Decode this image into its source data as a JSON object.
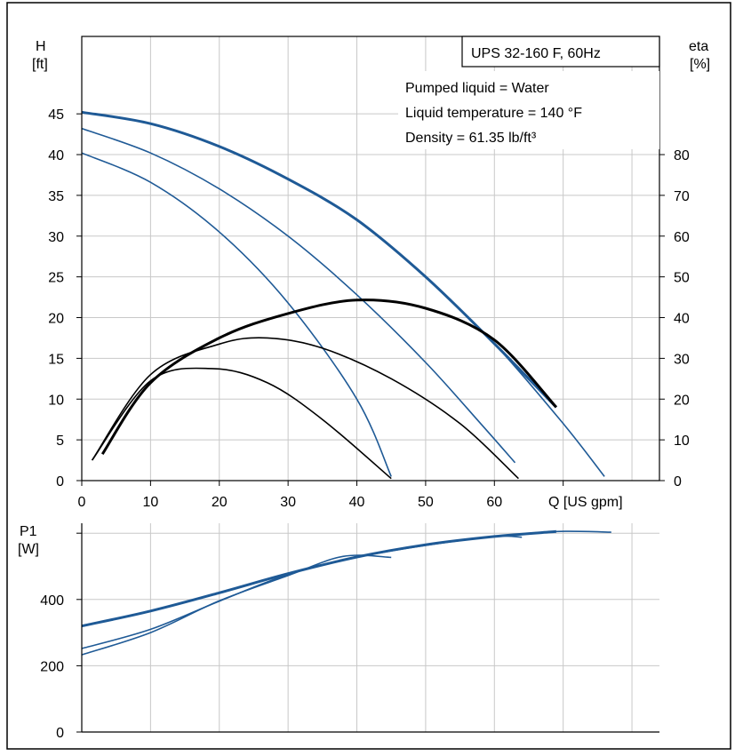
{
  "legend_box": {
    "title": "UPS 32-160 F, 60Hz"
  },
  "conditions": [
    "Pumped liquid = Water",
    "Liquid temperature = 140 °F",
    "Density = 61.35 lb/ft³"
  ],
  "colors": {
    "head_curve": "#1f5a96",
    "eff_curve": "#000000",
    "grid": "#c8c8c8",
    "frame": "#000000"
  },
  "chart_data": [
    {
      "type": "line",
      "title": "",
      "xlabel": "Q [US gpm]",
      "ylabel": "H\n[ft]",
      "ylabel_left_line1": "H",
      "ylabel_left_line2": "[ft]",
      "ylabel_right_line1": "eta",
      "ylabel_right_line2": "[%]",
      "xlim": [
        0,
        84
      ],
      "ylim": [
        0,
        54.5
      ],
      "ylim_right": [
        0,
        109
      ],
      "grid": true,
      "x_ticks": [
        0,
        10,
        20,
        30,
        40,
        50,
        60
      ],
      "x_tick_labels": [
        "0",
        "10",
        "20",
        "30",
        "40",
        "50",
        "60"
      ],
      "x_unit_tick_label": "Q [US gpm]",
      "y_ticks": [
        0,
        5,
        10,
        15,
        20,
        25,
        30,
        35,
        40,
        45
      ],
      "y_tick_labels": [
        "0",
        "5",
        "10",
        "15",
        "20",
        "25",
        "30",
        "35",
        "40",
        "45"
      ],
      "y_ticks_right": [
        0,
        10,
        20,
        30,
        40,
        50,
        60,
        70,
        80
      ],
      "y_tick_labels_right": [
        "0",
        "10",
        "20",
        "30",
        "40",
        "50",
        "60",
        "70",
        "80"
      ],
      "head_series": [
        {
          "x": [
            0,
            10,
            20,
            30,
            40,
            50,
            60,
            69
          ],
          "y": [
            45.2,
            43.8,
            41.0,
            37.0,
            32.0,
            25.0,
            16.8,
            9.0
          ]
        },
        {
          "x": [
            0,
            10,
            20,
            30,
            40,
            50,
            60,
            70,
            76
          ],
          "y": [
            45.2,
            43.8,
            41.0,
            37.0,
            32.0,
            25.0,
            16.8,
            7.0,
            0.5
          ]
        },
        {
          "x": [
            0,
            10,
            20,
            30,
            40,
            50,
            58,
            63
          ],
          "y": [
            43.2,
            40.2,
            35.8,
            30.0,
            22.8,
            14.5,
            7.0,
            2.2
          ]
        },
        {
          "x": [
            0,
            10,
            20,
            30,
            40,
            45
          ],
          "y": [
            40.2,
            36.6,
            30.5,
            21.8,
            10.0,
            0.5
          ]
        }
      ],
      "efficiency_series": [
        {
          "x": [
            3,
            10,
            20,
            30,
            40,
            50,
            60,
            69
          ],
          "y": [
            6.5,
            24.0,
            35.0,
            41.0,
            44.3,
            42.3,
            34.5,
            18.0
          ]
        },
        {
          "x": [
            1.5,
            10,
            20,
            27,
            35,
            45,
            55,
            63.5
          ],
          "y": [
            5.0,
            26.0,
            33.5,
            35.0,
            32.5,
            25.0,
            14.0,
            0.5
          ]
        },
        {
          "x": [
            1.5,
            10,
            19,
            27,
            35,
            45
          ],
          "y": [
            5.0,
            24.5,
            27.5,
            24.0,
            15.0,
            0.5
          ]
        }
      ]
    },
    {
      "type": "line",
      "title": "",
      "xlabel": "",
      "ylabel": "P1\n[W]",
      "ylabel_line1": "P1",
      "ylabel_line2": "[W]",
      "xlim": [
        0,
        84
      ],
      "ylim": [
        0,
        630
      ],
      "grid": true,
      "y_ticks": [
        0,
        200,
        400
      ],
      "y_tick_labels": [
        "0",
        "200",
        "400"
      ],
      "series": [
        {
          "x": [
            0,
            10,
            20,
            30,
            40,
            50,
            60,
            69
          ],
          "y": [
            320,
            365,
            420,
            478,
            528,
            565,
            590,
            605
          ]
        },
        {
          "x": [
            0,
            10,
            20,
            30,
            40,
            50,
            60,
            69,
            77
          ],
          "y": [
            320,
            365,
            420,
            478,
            528,
            565,
            590,
            605,
            603
          ]
        },
        {
          "x": [
            0,
            10,
            20,
            30,
            40,
            50,
            60,
            64
          ],
          "y": [
            252,
            310,
            395,
            475,
            527,
            563,
            590,
            588
          ]
        },
        {
          "x": [
            0,
            10,
            20,
            30,
            38,
            45
          ],
          "y": [
            233,
            300,
            396,
            472,
            530,
            527
          ]
        }
      ]
    }
  ]
}
